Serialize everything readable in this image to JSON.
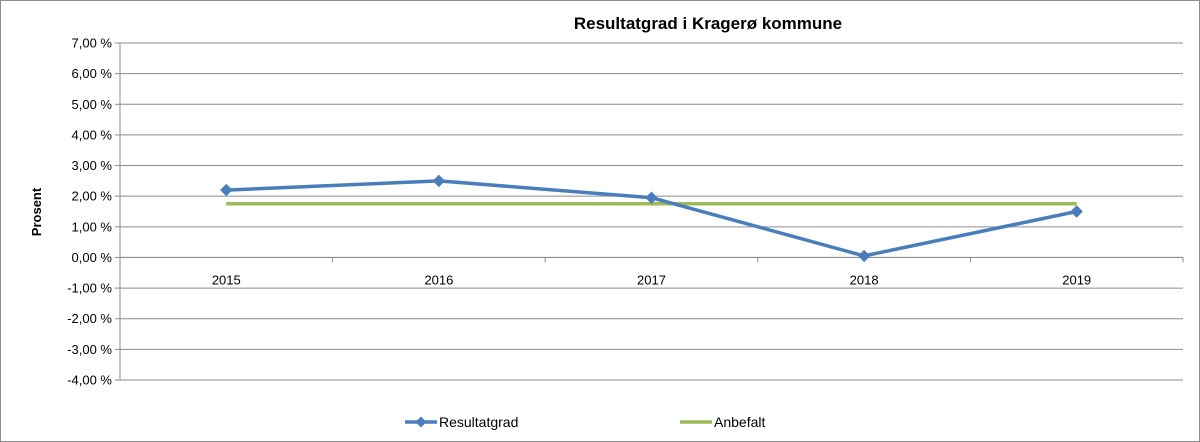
{
  "chart_data": {
    "type": "line",
    "title": "Resultatgrad i Kragerø kommune",
    "xlabel": "",
    "ylabel": "Prosent",
    "categories": [
      "2015",
      "2016",
      "2017",
      "2018",
      "2019"
    ],
    "ylim": [
      -4,
      7
    ],
    "yticks": [
      7,
      6,
      5,
      4,
      3,
      2,
      1,
      0,
      -1,
      -2,
      -3,
      -4
    ],
    "ytick_labels": [
      "7,00 %",
      "6,00 %",
      "5,00 %",
      "4,00 %",
      "3,00 %",
      "2,00 %",
      "1,00 %",
      "0,00 %",
      "-1,00 %",
      "-2,00 %",
      "-3,00 %",
      "-4,00 %"
    ],
    "grid": true,
    "legend_position": "bottom",
    "series": [
      {
        "name": "Resultatgrad",
        "values": [
          2.2,
          2.5,
          1.95,
          0.05,
          1.5
        ],
        "color": "#4a7ebb",
        "marker": "diamond"
      },
      {
        "name": "Anbefalt",
        "values": [
          1.75,
          1.75,
          1.75,
          1.75,
          1.75
        ],
        "color": "#9bbb59",
        "marker": "none"
      }
    ]
  }
}
